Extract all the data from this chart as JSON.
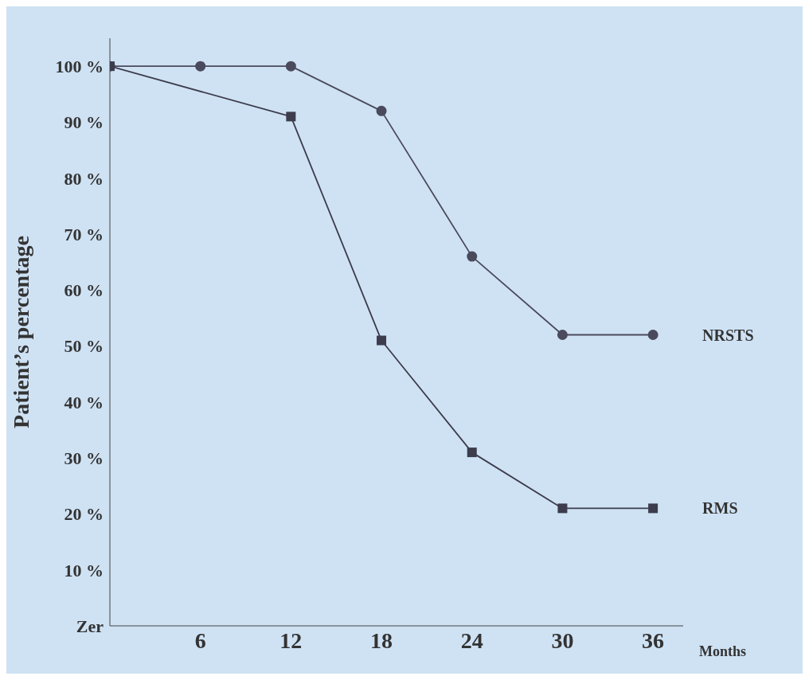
{
  "chart_data": {
    "type": "line",
    "xlabel": "Months",
    "ylabel": "Patient’s percentage",
    "xlim": [
      0,
      38
    ],
    "xticks": [
      6,
      12,
      18,
      24,
      30,
      36
    ],
    "ylim": [
      0,
      105
    ],
    "yticks": [
      {
        "value": 0,
        "label": "Zer"
      },
      {
        "value": 10,
        "label": "10 %"
      },
      {
        "value": 20,
        "label": "20 %"
      },
      {
        "value": 30,
        "label": "30 %"
      },
      {
        "value": 40,
        "label": "40 %"
      },
      {
        "value": 50,
        "label": "50 %"
      },
      {
        "value": 60,
        "label": "60 %"
      },
      {
        "value": 70,
        "label": "70 %"
      },
      {
        "value": 80,
        "label": "80 %"
      },
      {
        "value": 90,
        "label": "90 %"
      },
      {
        "value": 100,
        "label": "100 %"
      }
    ],
    "grid": false,
    "legend": false,
    "line_style": "solid",
    "x": [
      0,
      6,
      12,
      18,
      24,
      30,
      36
    ],
    "series": [
      {
        "name": "NRSTS",
        "color": "#4a4a5c",
        "marker": "circle",
        "values": [
          100,
          100,
          100,
          92,
          66,
          52,
          52
        ]
      },
      {
        "name": "RMS",
        "color": "#3c3c4c",
        "marker": "square",
        "values": [
          100,
          null,
          91,
          51,
          31,
          21,
          21
        ]
      }
    ]
  }
}
